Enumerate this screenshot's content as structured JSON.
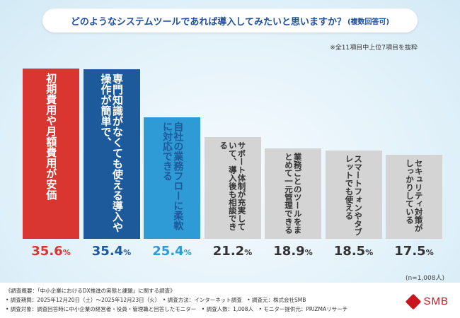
{
  "title": "どのようなシステムツールであれば導入してみたいと思いますか？",
  "title_sub": "(複数回答可)",
  "note": "※全11項目中上位7項目を抜粋",
  "n_note": "(n=1,008人)",
  "chart_data": {
    "type": "bar",
    "categories": [
      "初期費用や月額費用が安価",
      "専門知識がなくても使える導入や操作が簡単で、",
      "自社の業務フローに柔軟に対応できる",
      "サポート体制が充実していて、導入後も相談できる",
      "業務ごとのツールをまとめて一元管理できる",
      "スマートフォンやタブレットでも使える",
      "セキュリティ対策がしっかりしている"
    ],
    "display_values": [
      "35.6",
      "35.4",
      "25.4",
      "21.2",
      "18.9",
      "18.5",
      "17.5"
    ],
    "values": [
      35.6,
      35.4,
      25.4,
      21.2,
      18.9,
      18.5,
      17.5
    ],
    "unit": "%",
    "colors": [
      "#d93631",
      "#1d5a9c",
      "#2e9ad6",
      "#d4d4d4",
      "#d4d4d4",
      "#d4d4d4",
      "#d4d4d4"
    ],
    "value_colors": [
      "#d93631",
      "#1d5a9c",
      "#2e9ad6",
      "#333333",
      "#333333",
      "#333333",
      "#333333"
    ],
    "label_colors": [
      "#ffffff",
      "#ffffff",
      "#1d5a9c",
      "#333333",
      "#333333",
      "#333333",
      "#333333"
    ]
  },
  "footer": {
    "lines": [
      "《調査概要：「中小企業におけるDX推進の実態と課題」に関する調査》",
      "• 調査期間：2025年12月20日（土）〜2025年12月23日（火）　• 調査方法：インターネット調査　• 調査元：株式会社SMB",
      "• 調査対象：調査回答時に中小企業の経営者・役員・管理職と回答したモニター　• 調査人数：1,008人　• モニター提供元：PRIZMAリサーチ"
    ],
    "logo_text": "SMB",
    "logo_icon": "smb-logo-icon"
  }
}
